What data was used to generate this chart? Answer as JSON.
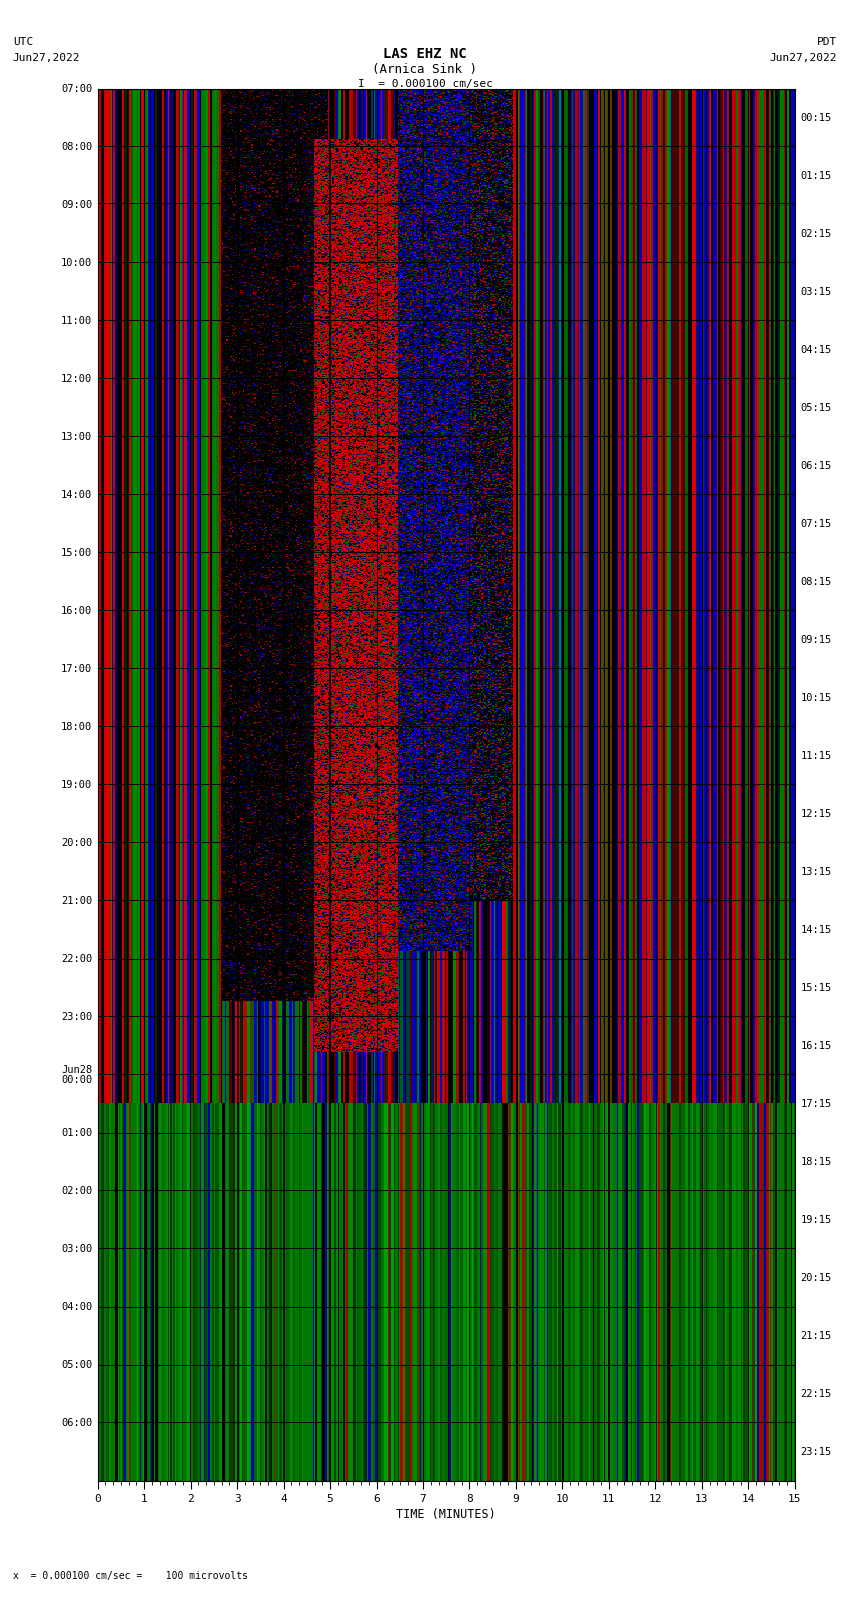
{
  "title_line1": "LAS EHZ NC",
  "title_line2": "(Arnica Sink )",
  "title_line3": "I  = 0.000100 cm/sec",
  "left_label_top": "UTC",
  "left_label_date": "Jun27,2022",
  "right_label_top": "PDT",
  "right_label_date": "Jun27,2022",
  "left_times_upper": [
    "07:00",
    "08:00",
    "09:00",
    "10:00",
    "11:00",
    "12:00",
    "13:00",
    "14:00",
    "15:00",
    "16:00",
    "17:00",
    "18:00",
    "19:00",
    "20:00",
    "21:00",
    "22:00",
    "23:00"
  ],
  "left_date_change": "Jun28",
  "left_time_midnight": "00:00",
  "left_times_lower": [
    "01:00",
    "02:00",
    "03:00",
    "04:00",
    "05:00",
    "06:00"
  ],
  "right_times": [
    "00:15",
    "01:15",
    "02:15",
    "03:15",
    "04:15",
    "05:15",
    "06:15",
    "07:15",
    "08:15",
    "09:15",
    "10:15",
    "11:15",
    "12:15",
    "13:15",
    "14:15",
    "15:15",
    "16:15",
    "17:15",
    "18:15",
    "19:15",
    "20:15",
    "21:15",
    "22:15",
    "23:15"
  ],
  "xlabel": "TIME (MINUTES)",
  "bottom_label": "x  = 0.000100 cm/sec =    100 microvolts",
  "xtick_labels": [
    "0",
    "1",
    "2",
    "3",
    "4",
    "5",
    "6",
    "7",
    "8",
    "9",
    "10",
    "11",
    "12",
    "13",
    "14",
    "15"
  ],
  "background_color": "#ffffff",
  "n_time_rows": 24,
  "seed": 42
}
